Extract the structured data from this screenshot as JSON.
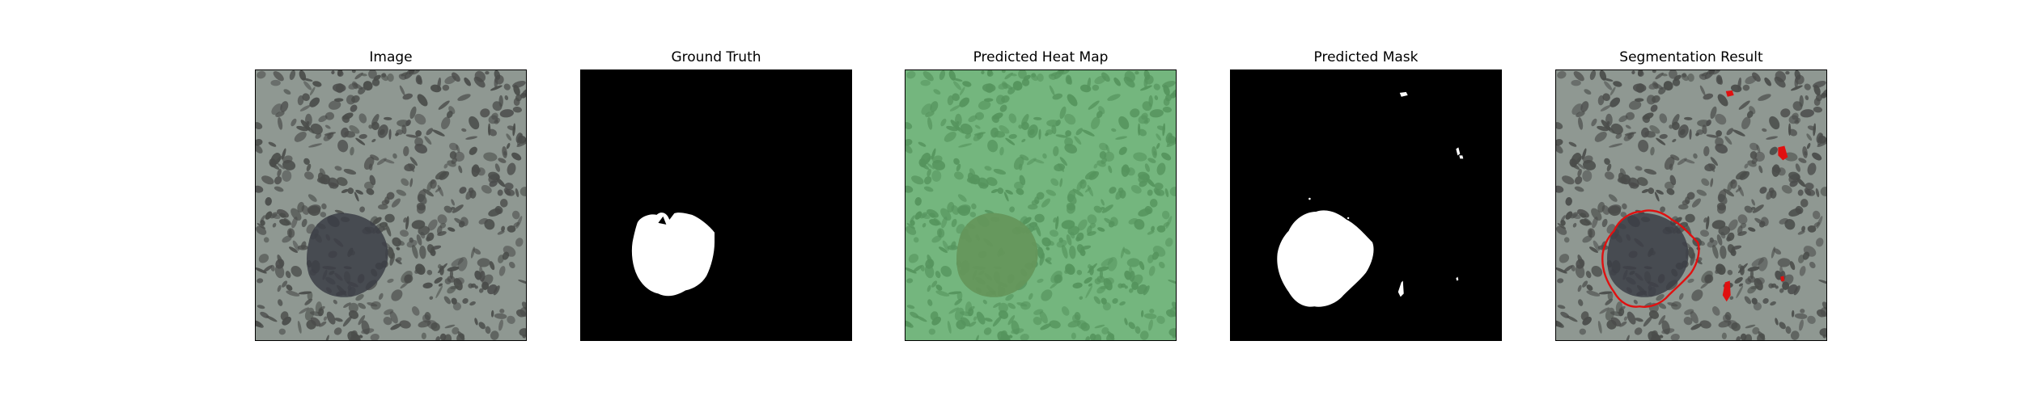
{
  "panels": [
    {
      "title": "Image",
      "kind": "image"
    },
    {
      "title": "Ground Truth",
      "kind": "mask"
    },
    {
      "title": "Predicted Heat Map",
      "kind": "heatmap"
    },
    {
      "title": "Predicted Mask",
      "kind": "mask"
    },
    {
      "title": "Segmentation Result",
      "kind": "overlay"
    }
  ],
  "colors": {
    "texture_base": "#8f9892",
    "texture_dark": "#4a4c4a",
    "defect_dark": "#3b3d45",
    "heat_tint": "#5fcf6e",
    "mask_bg": "#000000",
    "mask_fg": "#ffffff",
    "contour": "#e01010"
  }
}
